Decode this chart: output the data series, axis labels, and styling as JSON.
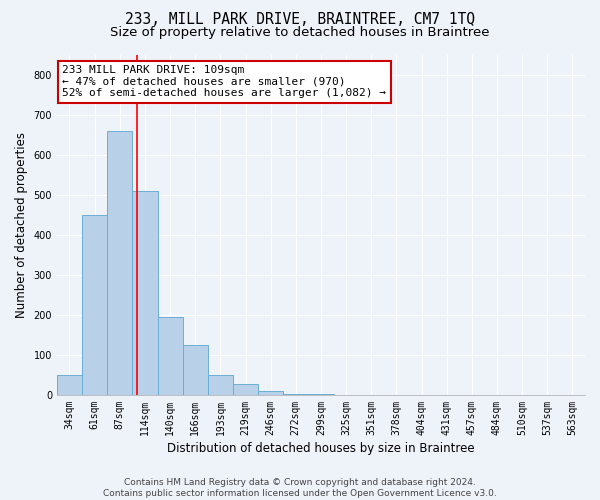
{
  "title": "233, MILL PARK DRIVE, BRAINTREE, CM7 1TQ",
  "subtitle": "Size of property relative to detached houses in Braintree",
  "xlabel": "Distribution of detached houses by size in Braintree",
  "ylabel": "Number of detached properties",
  "bins": [
    "34sqm",
    "61sqm",
    "87sqm",
    "114sqm",
    "140sqm",
    "166sqm",
    "193sqm",
    "219sqm",
    "246sqm",
    "272sqm",
    "299sqm",
    "325sqm",
    "351sqm",
    "378sqm",
    "404sqm",
    "431sqm",
    "457sqm",
    "484sqm",
    "510sqm",
    "537sqm",
    "563sqm"
  ],
  "bar_heights": [
    50,
    450,
    660,
    510,
    195,
    125,
    50,
    28,
    10,
    3,
    2,
    0,
    0,
    0,
    0,
    0,
    0,
    0,
    0,
    0,
    0
  ],
  "bar_color": "#b8d0e8",
  "bar_edge_color": "#6aaed6",
  "red_line_x": 2.67,
  "annotation_text": "233 MILL PARK DRIVE: 109sqm\n← 47% of detached houses are smaller (970)\n52% of semi-detached houses are larger (1,082) →",
  "annotation_box_color": "#ffffff",
  "annotation_box_edge_color": "#cc0000",
  "ylim": [
    0,
    850
  ],
  "yticks": [
    0,
    100,
    200,
    300,
    400,
    500,
    600,
    700,
    800
  ],
  "footer_line1": "Contains HM Land Registry data © Crown copyright and database right 2024.",
  "footer_line2": "Contains public sector information licensed under the Open Government Licence v3.0.",
  "bg_color": "#eef2f9",
  "plot_bg_color": "#eef2f9",
  "grid_color": "#ffffff",
  "title_fontsize": 10.5,
  "subtitle_fontsize": 9.5,
  "axis_label_fontsize": 8.5,
  "tick_fontsize": 7,
  "annotation_fontsize": 8,
  "footer_fontsize": 6.5
}
